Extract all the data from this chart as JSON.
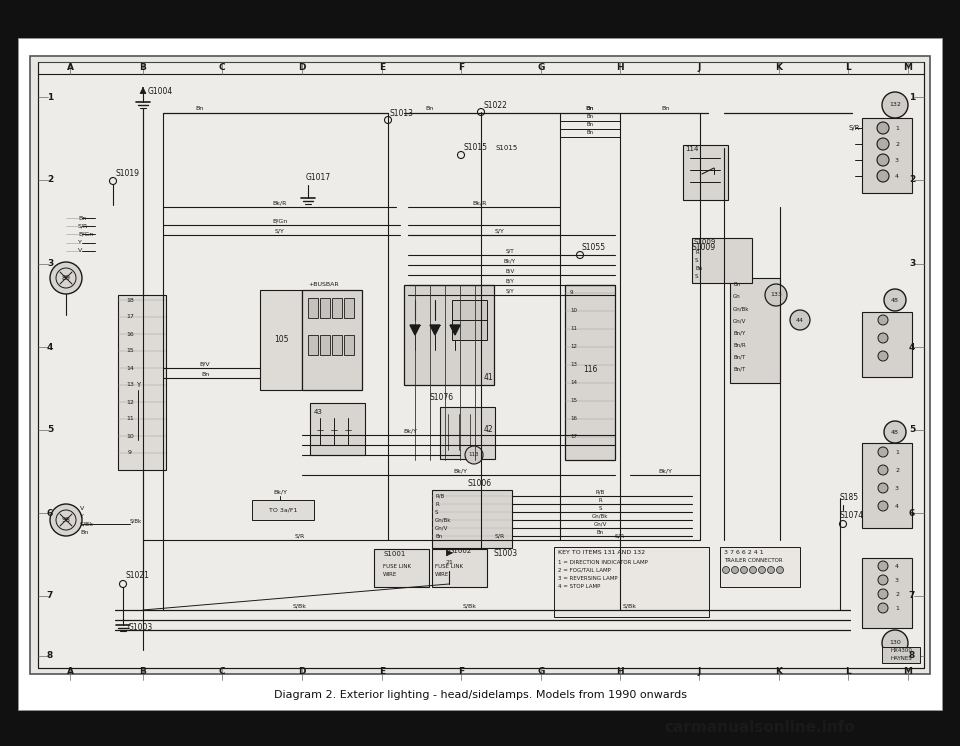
{
  "fig_width": 9.6,
  "fig_height": 7.46,
  "dpi": 100,
  "bg_outer": "#111111",
  "bg_page": "#ffffff",
  "bg_diagram": "#f5f3f0",
  "line_color": "#1a1a1a",
  "caption": "Diagram 2. Exterior lighting - head/sidelamps. Models from 1990 onwards",
  "watermark": "carmanualsonline.info",
  "col_labels": [
    "A",
    "B",
    "C",
    "D",
    "E",
    "F",
    "G",
    "H",
    "J",
    "K",
    "L",
    "M"
  ],
  "row_labels": [
    "1",
    "2",
    "3",
    "4",
    "5",
    "6",
    "7",
    "8"
  ]
}
